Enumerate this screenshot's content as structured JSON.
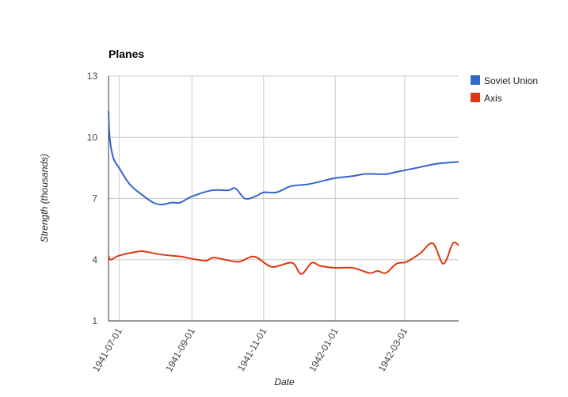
{
  "chart_data": {
    "type": "line",
    "title": "Planes",
    "xlabel": "Date",
    "ylabel": "Strength (thousands)",
    "ylim": [
      1,
      13
    ],
    "yticks": [
      "1",
      "4",
      "7",
      "10",
      "13"
    ],
    "xlim": [
      "1941-06-22",
      "1942-04-16"
    ],
    "xticks": [
      "1941-07-01",
      "1941-09-01",
      "1941-11-01",
      "1942-01-01",
      "1942-03-01"
    ],
    "grid": true,
    "legend_position": "right",
    "series": [
      {
        "name": "Soviet Union",
        "color": "#3366cc",
        "x": [
          "1941-06-22",
          "1941-06-23",
          "1941-06-26",
          "1941-07-01",
          "1941-07-10",
          "1941-07-20",
          "1941-07-30",
          "1941-08-06",
          "1941-08-15",
          "1941-08-22",
          "1941-09-01",
          "1941-09-18",
          "1941-10-02",
          "1941-10-08",
          "1941-10-16",
          "1941-10-25",
          "1941-11-01",
          "1941-11-12",
          "1941-11-24",
          "1941-12-09",
          "1941-12-24",
          "1942-01-01",
          "1942-01-16",
          "1942-01-26",
          "1942-02-05",
          "1942-02-14",
          "1942-02-22",
          "1942-03-11",
          "1942-03-28",
          "1942-04-16"
        ],
        "values": [
          11.3,
          10.0,
          9.0,
          8.5,
          7.7,
          7.2,
          6.8,
          6.7,
          6.8,
          6.8,
          7.1,
          7.4,
          7.4,
          7.5,
          7.0,
          7.1,
          7.3,
          7.3,
          7.6,
          7.7,
          7.9,
          8.0,
          8.1,
          8.2,
          8.2,
          8.2,
          8.3,
          8.5,
          8.7,
          8.8
        ]
      },
      {
        "name": "Axis",
        "color": "#dc3912",
        "x": [
          "1941-06-22",
          "1941-06-24",
          "1941-07-01",
          "1941-07-17",
          "1941-07-23",
          "1941-08-06",
          "1941-08-23",
          "1941-09-01",
          "1941-09-13",
          "1941-09-20",
          "1941-10-10",
          "1941-10-24",
          "1941-11-08",
          "1941-11-25",
          "1941-12-03",
          "1941-12-12",
          "1941-12-19",
          "1942-01-01",
          "1942-01-16",
          "1942-01-30",
          "1942-02-06",
          "1942-02-13",
          "1942-02-22",
          "1942-03-03",
          "1942-03-14",
          "1942-03-25",
          "1942-04-03",
          "1942-04-11",
          "1942-04-16"
        ],
        "values": [
          4.2,
          4.0,
          4.2,
          4.4,
          4.4,
          4.25,
          4.15,
          4.05,
          3.95,
          4.1,
          3.9,
          4.15,
          3.65,
          3.85,
          3.3,
          3.85,
          3.7,
          3.6,
          3.6,
          3.35,
          3.45,
          3.35,
          3.8,
          3.9,
          4.3,
          4.8,
          3.8,
          4.8,
          4.7
        ]
      }
    ]
  }
}
